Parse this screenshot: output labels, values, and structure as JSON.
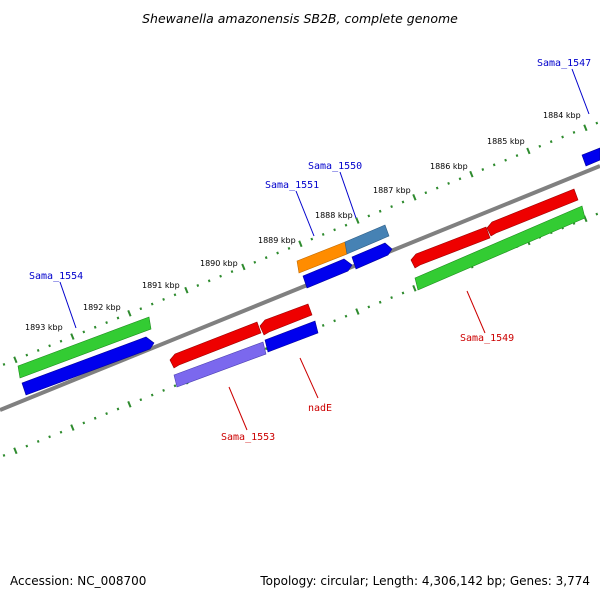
{
  "title": "Shewanella amazonensis SB2B, complete genome",
  "colors": {
    "backbone": "#808080",
    "tick": "#2e8b2e",
    "label_forward": "#0000cc",
    "label_reverse": "#cc0000",
    "red": "#ee0000",
    "green": "#33cc33",
    "blue": "#0000ee",
    "orange": "#ff8c00",
    "steelblue": "#4682b4",
    "purple": "#7b68ee"
  },
  "kbp_labels": [
    "1884 kbp",
    "1885 kbp",
    "1886 kbp",
    "1887 kbp",
    "1888 kbp",
    "1889 kbp",
    "1890 kbp",
    "1891 kbp",
    "1892 kbp",
    "1893 kbp"
  ],
  "genes": [
    {
      "label": "Sama_1547",
      "strand": "forward"
    },
    {
      "label": "Sama_1550",
      "strand": "forward"
    },
    {
      "label": "Sama_1551",
      "strand": "forward"
    },
    {
      "label": "Sama_1554",
      "strand": "forward"
    },
    {
      "label": "Sama_1549",
      "strand": "reverse"
    },
    {
      "label": "nadE",
      "strand": "reverse"
    },
    {
      "label": "Sama_1553",
      "strand": "reverse"
    }
  ],
  "footer": {
    "accession": "Accession: NC_008700",
    "stats": "Topology: circular; Length: 4,306,142 bp; Genes: 3,774"
  }
}
